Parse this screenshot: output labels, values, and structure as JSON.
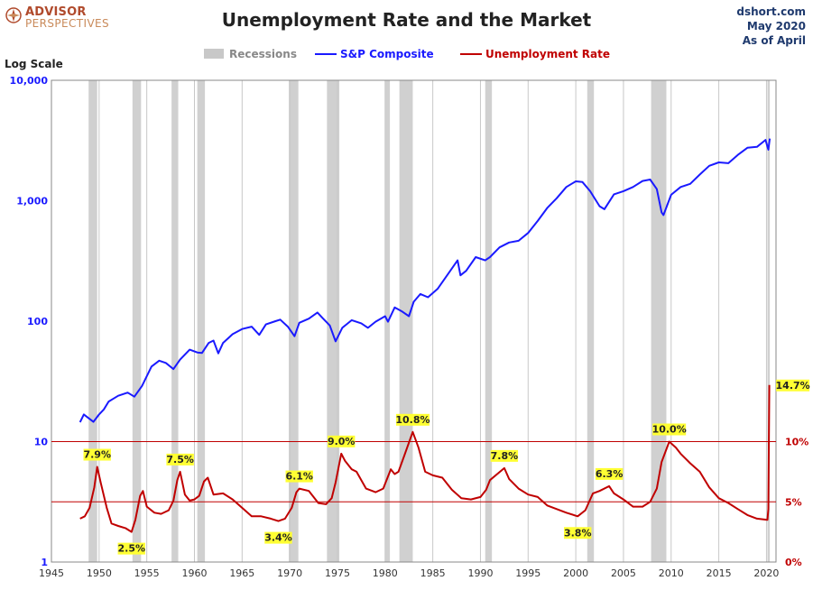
{
  "logo": {
    "line1": "ADVISOR",
    "line2": "PERSPECTIVES"
  },
  "title": "Unemployment Rate and the Market",
  "source": {
    "line1": "dshort.com",
    "line2": "May 2020",
    "line3": "As of April"
  },
  "colors": {
    "spx": "#1a1aff",
    "unemployment": "#c00000",
    "recession": "#d0d0d0",
    "grid": "#c8c8c8",
    "reference_line": "#c00000"
  },
  "chart_data": {
    "type": "line",
    "title": "Unemployment Rate and the Market",
    "scale_note": "Log Scale",
    "legend": {
      "placement": "top-center",
      "items": [
        {
          "name": "Recessions",
          "color": "#c8c8c8",
          "text_color": "#888888"
        },
        {
          "name": "S&P Composite",
          "color": "#1a1aff",
          "text_color": "#1a1aff"
        },
        {
          "name": "Unemployment Rate",
          "color": "#c00000",
          "text_color": "#c00000"
        }
      ]
    },
    "x_axis": {
      "range": [
        1945,
        2021
      ],
      "ticks": [
        1945,
        1950,
        1955,
        1960,
        1965,
        1970,
        1975,
        1980,
        1985,
        1990,
        1995,
        2000,
        2005,
        2010,
        2015,
        2020
      ]
    },
    "left_axis": {
      "scale": "log",
      "range": [
        1,
        10000
      ],
      "ticks": [
        {
          "value": 1,
          "label": "1"
        },
        {
          "value": 10,
          "label": "10"
        },
        {
          "value": 100,
          "label": "100"
        },
        {
          "value": 1000,
          "label": "1,000"
        },
        {
          "value": 10000,
          "label": "10,000"
        }
      ]
    },
    "right_axis": {
      "ticks": [
        {
          "value": 0,
          "label": "0%"
        },
        {
          "value": 5,
          "label": "5%"
        },
        {
          "value": 10,
          "label": "10%"
        }
      ]
    },
    "grid": true,
    "recessions": [
      [
        1948.9,
        1949.8
      ],
      [
        1953.5,
        1954.4
      ],
      [
        1957.6,
        1958.3
      ],
      [
        1960.3,
        1961.1
      ],
      [
        1969.9,
        1970.9
      ],
      [
        1973.9,
        1975.2
      ],
      [
        1980.0,
        1980.5
      ],
      [
        1981.5,
        1982.9
      ],
      [
        1990.5,
        1991.2
      ],
      [
        2001.2,
        2001.9
      ],
      [
        2007.9,
        2009.5
      ],
      [
        2020.1,
        2020.35
      ]
    ],
    "series": [
      {
        "name": "S&P Composite",
        "axis": "left",
        "points": [
          [
            1948.0,
            14.5
          ],
          [
            1948.4,
            16.8
          ],
          [
            1949.4,
            14.6
          ],
          [
            1950.0,
            16.8
          ],
          [
            1950.5,
            18.5
          ],
          [
            1951.0,
            21.5
          ],
          [
            1952.0,
            24.0
          ],
          [
            1953.0,
            25.5
          ],
          [
            1953.7,
            23.6
          ],
          [
            1954.5,
            29.0
          ],
          [
            1955.0,
            35.0
          ],
          [
            1955.5,
            42.0
          ],
          [
            1956.3,
            47.0
          ],
          [
            1957.0,
            45.0
          ],
          [
            1957.8,
            40.0
          ],
          [
            1958.5,
            48.0
          ],
          [
            1959.5,
            58.0
          ],
          [
            1960.3,
            55.0
          ],
          [
            1960.8,
            54.5
          ],
          [
            1961.5,
            66.0
          ],
          [
            1962.0,
            69.0
          ],
          [
            1962.5,
            54.0
          ],
          [
            1963.0,
            66.0
          ],
          [
            1964.0,
            78.0
          ],
          [
            1965.0,
            86.0
          ],
          [
            1966.0,
            90.0
          ],
          [
            1966.8,
            77.0
          ],
          [
            1967.5,
            94.0
          ],
          [
            1968.5,
            100.0
          ],
          [
            1969.0,
            103.0
          ],
          [
            1969.8,
            90.0
          ],
          [
            1970.5,
            75.0
          ],
          [
            1971.0,
            97.0
          ],
          [
            1972.0,
            105.0
          ],
          [
            1972.9,
            118.0
          ],
          [
            1973.5,
            105.0
          ],
          [
            1974.2,
            92.0
          ],
          [
            1974.8,
            68.0
          ],
          [
            1975.5,
            88.0
          ],
          [
            1976.5,
            102.0
          ],
          [
            1977.5,
            96.0
          ],
          [
            1978.2,
            88.0
          ],
          [
            1979.0,
            99.0
          ],
          [
            1980.0,
            110.0
          ],
          [
            1980.3,
            99.0
          ],
          [
            1981.0,
            130.0
          ],
          [
            1981.8,
            120.0
          ],
          [
            1982.5,
            110.0
          ],
          [
            1983.0,
            145.0
          ],
          [
            1983.7,
            168.0
          ],
          [
            1984.5,
            158.0
          ],
          [
            1985.5,
            185.0
          ],
          [
            1986.5,
            240.0
          ],
          [
            1987.6,
            320.0
          ],
          [
            1987.9,
            240.0
          ],
          [
            1988.5,
            262.0
          ],
          [
            1989.5,
            340.0
          ],
          [
            1990.5,
            320.0
          ],
          [
            1991.0,
            340.0
          ],
          [
            1992.0,
            410.0
          ],
          [
            1993.0,
            450.0
          ],
          [
            1994.0,
            465.0
          ],
          [
            1995.0,
            540.0
          ],
          [
            1996.0,
            680.0
          ],
          [
            1997.0,
            870.0
          ],
          [
            1998.0,
            1050.0
          ],
          [
            1999.0,
            1300.0
          ],
          [
            2000.0,
            1450.0
          ],
          [
            2000.7,
            1430.0
          ],
          [
            2001.5,
            1200.0
          ],
          [
            2002.5,
            900.0
          ],
          [
            2003.0,
            850.0
          ],
          [
            2004.0,
            1130.0
          ],
          [
            2005.0,
            1200.0
          ],
          [
            2006.0,
            1300.0
          ],
          [
            2007.0,
            1460.0
          ],
          [
            2007.8,
            1500.0
          ],
          [
            2008.5,
            1250.0
          ],
          [
            2009.0,
            800.0
          ],
          [
            2009.2,
            760.0
          ],
          [
            2010.0,
            1120.0
          ],
          [
            2011.0,
            1300.0
          ],
          [
            2012.0,
            1380.0
          ],
          [
            2013.0,
            1650.0
          ],
          [
            2014.0,
            1950.0
          ],
          [
            2015.0,
            2080.0
          ],
          [
            2016.0,
            2050.0
          ],
          [
            2017.0,
            2400.0
          ],
          [
            2018.0,
            2750.0
          ],
          [
            2019.0,
            2800.0
          ],
          [
            2019.9,
            3200.0
          ],
          [
            2020.2,
            2650.0
          ],
          [
            2020.35,
            3280.0
          ]
        ]
      },
      {
        "name": "Unemployment Rate",
        "axis": "right",
        "points": [
          [
            1948.0,
            3.6
          ],
          [
            1948.5,
            3.8
          ],
          [
            1949.0,
            4.5
          ],
          [
            1949.5,
            6.2
          ],
          [
            1949.8,
            7.9
          ],
          [
            1950.2,
            6.5
          ],
          [
            1950.8,
            4.5
          ],
          [
            1951.3,
            3.2
          ],
          [
            1952.0,
            3.0
          ],
          [
            1952.8,
            2.8
          ],
          [
            1953.4,
            2.5
          ],
          [
            1953.8,
            3.5
          ],
          [
            1954.3,
            5.5
          ],
          [
            1954.6,
            5.9
          ],
          [
            1955.0,
            4.6
          ],
          [
            1955.8,
            4.1
          ],
          [
            1956.5,
            4.0
          ],
          [
            1957.3,
            4.3
          ],
          [
            1957.8,
            5.1
          ],
          [
            1958.2,
            6.8
          ],
          [
            1958.5,
            7.5
          ],
          [
            1959.0,
            5.6
          ],
          [
            1959.5,
            5.1
          ],
          [
            1960.0,
            5.2
          ],
          [
            1960.5,
            5.5
          ],
          [
            1961.0,
            6.7
          ],
          [
            1961.4,
            7.0
          ],
          [
            1962.0,
            5.6
          ],
          [
            1963.0,
            5.7
          ],
          [
            1964.0,
            5.2
          ],
          [
            1965.0,
            4.5
          ],
          [
            1966.0,
            3.8
          ],
          [
            1967.0,
            3.8
          ],
          [
            1968.0,
            3.6
          ],
          [
            1968.8,
            3.4
          ],
          [
            1969.5,
            3.6
          ],
          [
            1970.2,
            4.5
          ],
          [
            1970.7,
            5.8
          ],
          [
            1971.0,
            6.1
          ],
          [
            1972.0,
            5.9
          ],
          [
            1973.0,
            4.9
          ],
          [
            1973.8,
            4.8
          ],
          [
            1974.4,
            5.3
          ],
          [
            1974.8,
            6.6
          ],
          [
            1975.4,
            9.0
          ],
          [
            1975.8,
            8.4
          ],
          [
            1976.5,
            7.7
          ],
          [
            1977.0,
            7.5
          ],
          [
            1978.0,
            6.1
          ],
          [
            1979.0,
            5.8
          ],
          [
            1979.8,
            6.1
          ],
          [
            1980.6,
            7.7
          ],
          [
            1981.0,
            7.3
          ],
          [
            1981.4,
            7.5
          ],
          [
            1982.0,
            8.8
          ],
          [
            1982.9,
            10.8
          ],
          [
            1983.5,
            9.5
          ],
          [
            1984.2,
            7.5
          ],
          [
            1985.0,
            7.2
          ],
          [
            1986.0,
            7.0
          ],
          [
            1987.0,
            6.0
          ],
          [
            1988.0,
            5.3
          ],
          [
            1989.0,
            5.2
          ],
          [
            1990.0,
            5.4
          ],
          [
            1990.6,
            6.0
          ],
          [
            1991.0,
            6.8
          ],
          [
            1992.5,
            7.8
          ],
          [
            1993.0,
            6.9
          ],
          [
            1994.0,
            6.1
          ],
          [
            1995.0,
            5.6
          ],
          [
            1996.0,
            5.4
          ],
          [
            1997.0,
            4.7
          ],
          [
            1998.0,
            4.4
          ],
          [
            1999.0,
            4.1
          ],
          [
            2000.2,
            3.8
          ],
          [
            2001.0,
            4.3
          ],
          [
            2001.8,
            5.7
          ],
          [
            2002.5,
            5.9
          ],
          [
            2003.5,
            6.3
          ],
          [
            2004.0,
            5.7
          ],
          [
            2005.0,
            5.2
          ],
          [
            2006.0,
            4.6
          ],
          [
            2007.0,
            4.6
          ],
          [
            2007.8,
            5.0
          ],
          [
            2008.5,
            6.1
          ],
          [
            2009.0,
            8.3
          ],
          [
            2009.8,
            10.0
          ],
          [
            2010.5,
            9.5
          ],
          [
            2011.0,
            9.0
          ],
          [
            2012.0,
            8.2
          ],
          [
            2013.0,
            7.5
          ],
          [
            2014.0,
            6.2
          ],
          [
            2015.0,
            5.3
          ],
          [
            2016.0,
            4.9
          ],
          [
            2017.0,
            4.4
          ],
          [
            2018.0,
            3.9
          ],
          [
            2019.0,
            3.6
          ],
          [
            2020.1,
            3.5
          ],
          [
            2020.2,
            4.4
          ],
          [
            2020.3,
            14.7
          ]
        ]
      }
    ],
    "annotations": [
      {
        "text": "7.9%",
        "x": 1949.8,
        "y": 7.9,
        "pos": "above"
      },
      {
        "text": "2.5%",
        "x": 1953.4,
        "y": 2.5,
        "pos": "below"
      },
      {
        "text": "7.5%",
        "x": 1958.5,
        "y": 7.5,
        "pos": "above"
      },
      {
        "text": "3.4%",
        "x": 1968.8,
        "y": 3.4,
        "pos": "below"
      },
      {
        "text": "6.1%",
        "x": 1971.0,
        "y": 6.1,
        "pos": "above"
      },
      {
        "text": "9.0%",
        "x": 1975.4,
        "y": 9.0,
        "pos": "above"
      },
      {
        "text": "10.8%",
        "x": 1982.9,
        "y": 10.8,
        "pos": "above"
      },
      {
        "text": "7.8%",
        "x": 1992.5,
        "y": 7.8,
        "pos": "above"
      },
      {
        "text": "3.8%",
        "x": 2000.2,
        "y": 3.8,
        "pos": "below"
      },
      {
        "text": "6.3%",
        "x": 2003.5,
        "y": 6.3,
        "pos": "above"
      },
      {
        "text": "10.0%",
        "x": 2009.8,
        "y": 10.0,
        "pos": "above"
      },
      {
        "text": "14.7%",
        "x": 2020.3,
        "y": 14.7,
        "pos": "right"
      }
    ],
    "reference_lines_right": [
      5,
      10
    ]
  }
}
